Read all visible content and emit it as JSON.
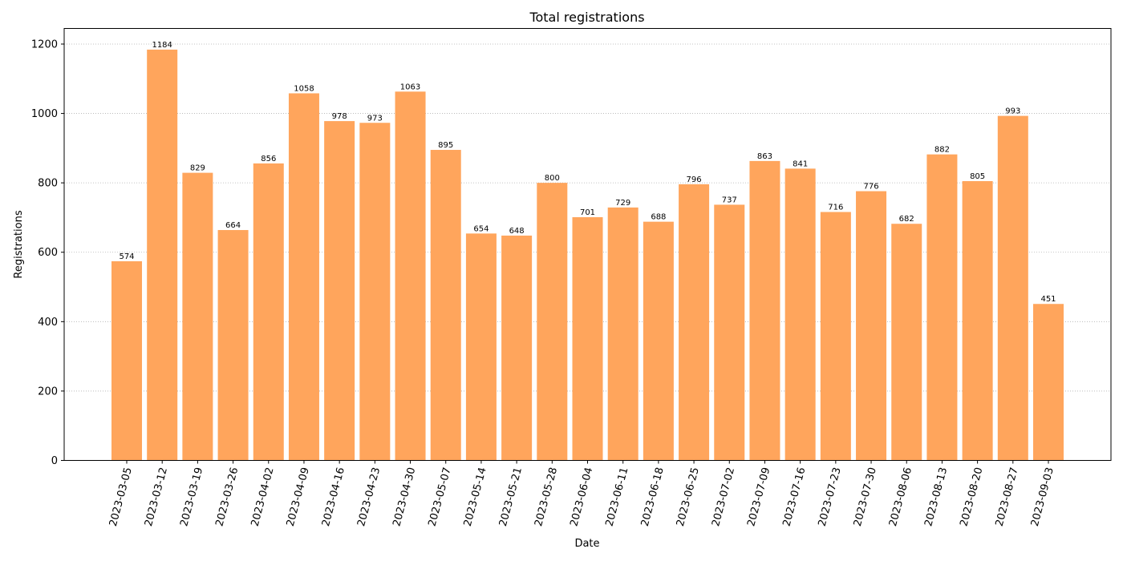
{
  "chart_data": {
    "type": "bar",
    "title": "Total registrations",
    "xlabel": "Date",
    "ylabel": "Registrations",
    "ylim": [
      0,
      1245
    ],
    "yticks": [
      0,
      200,
      400,
      600,
      800,
      1000,
      1200
    ],
    "grid": "y-dotted",
    "bar_color": "#ffa55c",
    "categories": [
      "2023-03-05",
      "2023-03-12",
      "2023-03-19",
      "2023-03-26",
      "2023-04-02",
      "2023-04-09",
      "2023-04-16",
      "2023-04-23",
      "2023-04-30",
      "2023-05-07",
      "2023-05-14",
      "2023-05-21",
      "2023-05-28",
      "2023-06-04",
      "2023-06-11",
      "2023-06-18",
      "2023-06-25",
      "2023-07-02",
      "2023-07-09",
      "2023-07-16",
      "2023-07-23",
      "2023-07-30",
      "2023-08-06",
      "2023-08-13",
      "2023-08-20",
      "2023-08-27",
      "2023-09-03"
    ],
    "values": [
      574,
      1184,
      829,
      664,
      856,
      1058,
      978,
      973,
      1063,
      895,
      654,
      648,
      800,
      701,
      729,
      688,
      796,
      737,
      863,
      841,
      716,
      776,
      682,
      882,
      805,
      993,
      451
    ]
  }
}
